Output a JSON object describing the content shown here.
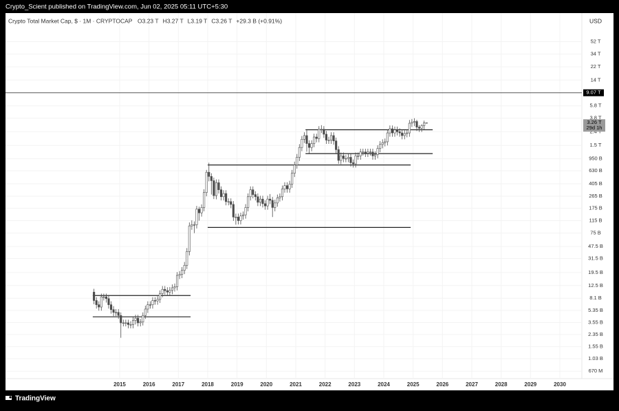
{
  "header": "Crypto_Scient published on TradingView.com, Jun 02, 2025 05:11 UTC+5:30",
  "brand": "TradingView",
  "chart_data": {
    "type": "candlestick",
    "title": "Crypto Total Market Cap, $ · 1M · CRYPTOCAP",
    "ohlc_legend": [
      "O3.23 T",
      "H3.27 T",
      "L3.19 T",
      "C3.26 T",
      "+29.3 B (+0.91%)"
    ],
    "currency": "USD",
    "log_scale": true,
    "grid": true,
    "up_color": "#ffffff",
    "down_color": "#4a4a4a",
    "wick_color": "#4a4a4a",
    "x": [
      "2014-02",
      "2014-03",
      "2014-04",
      "2014-05",
      "2014-06",
      "2014-07",
      "2014-08",
      "2014-09",
      "2014-10",
      "2014-11",
      "2014-12",
      "2015-01",
      "2015-02",
      "2015-03",
      "2015-04",
      "2015-05",
      "2015-06",
      "2015-07",
      "2015-08",
      "2015-09",
      "2015-10",
      "2015-11",
      "2015-12",
      "2016-01",
      "2016-02",
      "2016-03",
      "2016-04",
      "2016-05",
      "2016-06",
      "2016-07",
      "2016-08",
      "2016-09",
      "2016-10",
      "2016-11",
      "2016-12",
      "2017-01",
      "2017-02",
      "2017-03",
      "2017-04",
      "2017-05",
      "2017-06",
      "2017-07",
      "2017-08",
      "2017-09",
      "2017-10",
      "2017-11",
      "2017-12",
      "2018-01",
      "2018-02",
      "2018-03",
      "2018-04",
      "2018-05",
      "2018-06",
      "2018-07",
      "2018-08",
      "2018-09",
      "2018-10",
      "2018-11",
      "2018-12",
      "2019-01",
      "2019-02",
      "2019-03",
      "2019-04",
      "2019-05",
      "2019-06",
      "2019-07",
      "2019-08",
      "2019-09",
      "2019-10",
      "2019-11",
      "2019-12",
      "2020-01",
      "2020-02",
      "2020-03",
      "2020-04",
      "2020-05",
      "2020-06",
      "2020-07",
      "2020-08",
      "2020-09",
      "2020-10",
      "2020-11",
      "2020-12",
      "2021-01",
      "2021-02",
      "2021-03",
      "2021-04",
      "2021-05",
      "2021-06",
      "2021-07",
      "2021-08",
      "2021-09",
      "2021-10",
      "2021-11",
      "2021-12",
      "2022-01",
      "2022-02",
      "2022-03",
      "2022-04",
      "2022-05",
      "2022-06",
      "2022-07",
      "2022-08",
      "2022-09",
      "2022-10",
      "2022-11",
      "2022-12",
      "2023-01",
      "2023-02",
      "2023-03",
      "2023-04",
      "2023-05",
      "2023-06",
      "2023-07",
      "2023-08",
      "2023-09",
      "2023-10",
      "2023-11",
      "2023-12",
      "2024-01",
      "2024-02",
      "2024-03",
      "2024-04",
      "2024-05",
      "2024-06",
      "2024-07",
      "2024-08",
      "2024-09",
      "2024-10",
      "2024-11",
      "2024-12",
      "2025-01",
      "2025-02",
      "2025-03",
      "2025-04",
      "2025-05",
      "2025-06"
    ],
    "open": [
      10,
      7.5,
      6.5,
      6.0,
      8.5,
      8.5,
      8.0,
      6.5,
      5.5,
      5.0,
      5.0,
      4.5,
      3.5,
      3.5,
      3.5,
      3.3,
      3.3,
      3.8,
      4.1,
      3.5,
      3.6,
      4.5,
      5.6,
      6.5,
      6.5,
      7.5,
      7.4,
      7.8,
      9.5,
      11,
      10.5,
      10,
      10.6,
      11.6,
      12,
      17.7,
      18.3,
      21,
      25,
      40,
      96,
      100,
      100,
      170,
      150,
      180,
      300,
      600,
      520,
      450,
      270,
      420,
      330,
      260,
      290,
      220,
      220,
      200,
      130,
      130,
      115,
      135,
      140,
      180,
      260,
      330,
      280,
      260,
      215,
      240,
      205,
      190,
      240,
      230,
      180,
      210,
      250,
      260,
      340,
      380,
      340,
      400,
      580,
      770,
      1000,
      1400,
      1850,
      2100,
      1600,
      1400,
      1600,
      2000,
      1900,
      2600,
      2600,
      2200,
      1800,
      1800,
      2100,
      1750,
      1300,
      900,
      1050,
      960,
      960,
      1000,
      830,
      800,
      1050,
      1050,
      1200,
      1200,
      1150,
      1200,
      1200,
      1050,
      1100,
      1350,
      1550,
      1650,
      1700,
      2300,
      2650,
      2300,
      2550,
      2400,
      2300,
      2100,
      2250,
      2300,
      3200,
      3300,
      3400,
      2800,
      2700,
      2950,
      3230
    ],
    "high": [
      11.2,
      8.4,
      7.3,
      9.5,
      9.5,
      9.5,
      9.0,
      7.3,
      6.2,
      5.6,
      5.6,
      5.0,
      3.9,
      3.9,
      3.9,
      3.7,
      4.3,
      4.6,
      4.6,
      4.0,
      5.0,
      6.3,
      7.3,
      7.3,
      8.4,
      8.4,
      8.7,
      10.6,
      12.3,
      12.3,
      11.8,
      11.9,
      13,
      13.4,
      19.8,
      20.5,
      23.5,
      28,
      45,
      108,
      116,
      112,
      190,
      185,
      200,
      336,
      650,
      830,
      580,
      500,
      470,
      470,
      370,
      325,
      325,
      246,
      246,
      224,
      146,
      146,
      151,
      157,
      202,
      291,
      370,
      370,
      314,
      291,
      269,
      269,
      230,
      269,
      285,
      258,
      235,
      280,
      291,
      381,
      426,
      426,
      448,
      650,
      862,
      1120,
      1570,
      2070,
      2350,
      2520,
      1790,
      1790,
      2240,
      2240,
      2900,
      3000,
      2900,
      2460,
      2020,
      2350,
      2350,
      1960,
      1460,
      1180,
      1180,
      1080,
      1120,
      1120,
      930,
      1180,
      1180,
      1340,
      1340,
      1340,
      1340,
      1340,
      1340,
      1230,
      1510,
      1740,
      1850,
      1900,
      2580,
      2970,
      2970,
      2860,
      2860,
      2690,
      2580,
      2520,
      2580,
      3580,
      3700,
      3800,
      3600,
      3000,
      3100,
      3500,
      3270
    ],
    "low": [
      6.6,
      5.7,
      5.3,
      5.3,
      7.5,
      7.0,
      5.7,
      4.8,
      4.4,
      4.4,
      4.0,
      2.1,
      3.1,
      3.1,
      2.9,
      2.9,
      2.9,
      3.3,
      3.1,
      3.1,
      3.2,
      4.0,
      4.9,
      5.7,
      5.7,
      6.5,
      6.5,
      6.9,
      8.4,
      9.2,
      8.8,
      8.8,
      9.3,
      10.2,
      10.6,
      15.6,
      16.1,
      18.5,
      22,
      35,
      84,
      75,
      88,
      115,
      132,
      158,
      264,
      440,
      280,
      240,
      238,
      290,
      229,
      229,
      194,
      194,
      176,
      114,
      100,
      101,
      101,
      119,
      123,
      158,
      229,
      246,
      229,
      189,
      189,
      180,
      167,
      167,
      202,
      130,
      158,
      185,
      220,
      229,
      299,
      299,
      299,
      352,
      510,
      678,
      880,
      1230,
      1630,
      1210,
      1150,
      1230,
      1410,
      1670,
      1670,
      2290,
      1940,
      1580,
      1580,
      1580,
      1540,
      1140,
      800,
      790,
      845,
      845,
      845,
      730,
      705,
      705,
      920,
      920,
      1060,
      1010,
      1010,
      1060,
      920,
      920,
      970,
      1190,
      1360,
      1450,
      1500,
      2020,
      2020,
      2020,
      2110,
      2020,
      1850,
      1850,
      1980,
      2020,
      2820,
      2900,
      2460,
      2380,
      2380,
      2600,
      3190
    ],
    "close": [
      7.5,
      6.5,
      6.0,
      8.5,
      8.5,
      8.0,
      6.5,
      5.5,
      5.0,
      5.0,
      4.5,
      3.5,
      3.5,
      3.5,
      3.3,
      3.3,
      3.8,
      4.1,
      3.5,
      3.6,
      4.5,
      5.6,
      6.5,
      6.5,
      7.5,
      7.4,
      7.8,
      9.5,
      11,
      10.5,
      10,
      10.6,
      11.6,
      12,
      17.7,
      18.3,
      21,
      25,
      40,
      96,
      100,
      100,
      170,
      150,
      180,
      300,
      600,
      520,
      450,
      270,
      420,
      330,
      260,
      290,
      220,
      220,
      200,
      130,
      130,
      115,
      135,
      140,
      180,
      260,
      330,
      280,
      260,
      215,
      240,
      205,
      190,
      240,
      230,
      180,
      210,
      250,
      260,
      340,
      380,
      340,
      400,
      580,
      770,
      1000,
      1400,
      1850,
      2100,
      1600,
      1400,
      1600,
      2000,
      1900,
      2600,
      2600,
      2200,
      1800,
      1800,
      2100,
      1750,
      1300,
      900,
      1050,
      960,
      960,
      1000,
      830,
      800,
      1050,
      1050,
      1200,
      1200,
      1150,
      1200,
      1200,
      1050,
      1100,
      1350,
      1550,
      1650,
      1700,
      2300,
      2650,
      2300,
      2550,
      2400,
      2300,
      2100,
      2250,
      2300,
      3200,
      3300,
      3400,
      2800,
      2700,
      2950,
      3230,
      3260
    ],
    "xlim": [
      2011.11,
      2030.75
    ],
    "xticks": [
      2015,
      2016,
      2017,
      2018,
      2019,
      2020,
      2021,
      2022,
      2023,
      2024,
      2025,
      2026,
      2027,
      2028,
      2029,
      2030
    ],
    "ylim": [
      0.52,
      138000
    ],
    "yticks": [
      {
        "value": 52000,
        "label": "52 T"
      },
      {
        "value": 34000,
        "label": "34 T"
      },
      {
        "value": 22000,
        "label": "22 T"
      },
      {
        "value": 14000,
        "label": "14 T"
      },
      {
        "value": 5800,
        "label": "5.8 T"
      },
      {
        "value": 3800,
        "label": "3.8 T"
      },
      {
        "value": 2400,
        "label": "2.4 T"
      },
      {
        "value": 1500,
        "label": "1.5 T"
      },
      {
        "value": 950,
        "label": "950 B"
      },
      {
        "value": 630,
        "label": "630 B"
      },
      {
        "value": 405,
        "label": "405 B"
      },
      {
        "value": 265,
        "label": "265 B"
      },
      {
        "value": 175,
        "label": "175 B"
      },
      {
        "value": 115,
        "label": "115 B"
      },
      {
        "value": 75,
        "label": "75 B"
      },
      {
        "value": 47.5,
        "label": "47.5 B"
      },
      {
        "value": 31.5,
        "label": "31.5 B"
      },
      {
        "value": 19.5,
        "label": "19.5 B"
      },
      {
        "value": 12.5,
        "label": "12.5 B"
      },
      {
        "value": 8.1,
        "label": "8.1 B"
      },
      {
        "value": 5.35,
        "label": "5.35 B"
      },
      {
        "value": 3.55,
        "label": "3.55 B"
      },
      {
        "value": 2.35,
        "label": "2.35 B"
      },
      {
        "value": 1.55,
        "label": "1.55 B"
      },
      {
        "value": 1.03,
        "label": "1.03 B"
      },
      {
        "value": 0.67,
        "label": "670 M"
      }
    ],
    "horizontal_line": {
      "value": 9070,
      "label": "9.07 T"
    },
    "levels": [
      {
        "value": 8.9,
        "start": "2014-02",
        "end": "2017-06"
      },
      {
        "value": 4.3,
        "start": "2014-02",
        "end": "2017-06"
      },
      {
        "value": 770,
        "start": "2018-01",
        "end": "2024-12"
      },
      {
        "value": 91,
        "start": "2018-01",
        "end": "2024-12"
      },
      {
        "value": 2560,
        "start": "2021-05",
        "end": "2025-09"
      },
      {
        "value": 1135,
        "start": "2021-05",
        "end": "2025-09"
      }
    ],
    "last_price": {
      "value": 3260,
      "label": "3.26 T"
    },
    "countdown": "29d 1h"
  }
}
